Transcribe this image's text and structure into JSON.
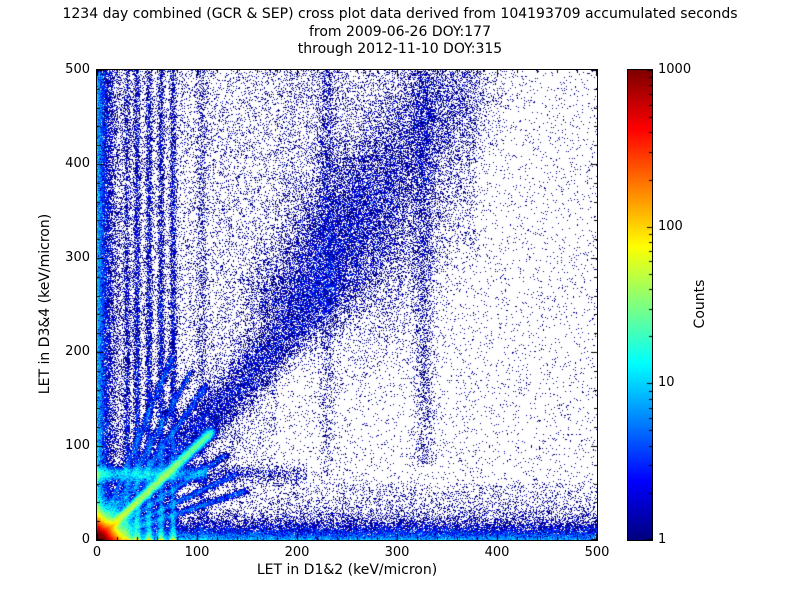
{
  "title": {
    "line1": "1234 day combined (GCR & SEP) cross plot data derived from 104193709 accumulated seconds",
    "line2": "from 2009-06-26 DOY:177",
    "line3": "through 2012-11-10 DOY:315"
  },
  "chart_data": {
    "type": "heatmap",
    "subtype": "2d-histogram-cross-plot",
    "xlabel": "LET in D1&2 (keV/micron)",
    "ylabel": "LET in D3&4 (keV/micron)",
    "xlim": [
      0,
      500
    ],
    "ylim": [
      0,
      500
    ],
    "x_ticks": [
      0,
      100,
      200,
      300,
      400,
      500
    ],
    "y_ticks": [
      0,
      100,
      200,
      300,
      400,
      500
    ],
    "x_minor_step": 20,
    "y_minor_step": 20,
    "grid": false,
    "colorbar": {
      "label": "Counts",
      "scale": "log",
      "ticks": [
        1,
        10,
        100,
        1000
      ],
      "range": [
        1,
        1000
      ],
      "colormap": "jet",
      "color_low": "#00007f",
      "color_high": "#7f0000"
    },
    "features": [
      {
        "kind": "scatter",
        "desc": "sparse full-field background, denser at low x",
        "n": 15000,
        "x0": 0,
        "x1": 500,
        "y0": 0,
        "y1": 500,
        "biasx": 1.5,
        "biasy": 1
      },
      {
        "kind": "scatter",
        "desc": "extra scatter in left region",
        "n": 9000,
        "x0": 0,
        "x1": 180,
        "y0": 0,
        "y1": 500,
        "biasx": 1,
        "biasy": 1
      },
      {
        "kind": "scatter",
        "desc": "low-level scatter bottom-right",
        "n": 3000,
        "x0": 180,
        "x1": 500,
        "y0": 0,
        "y1": 60,
        "biasx": 1,
        "biasy": 1.3
      },
      {
        "kind": "scatter",
        "desc": "enhanced scatter upper middle around diagonal",
        "n": 5000,
        "x0": 180,
        "x1": 380,
        "y0": 300,
        "y1": 500,
        "biasx": 1,
        "biasy": 0.8
      },
      {
        "kind": "blob",
        "dist": "exp",
        "desc": "intense hotspot at origin (~1000 counts)",
        "cx": 0,
        "cy": 0,
        "sx": 7,
        "sy": 7,
        "n": 170000
      },
      {
        "kind": "ray",
        "desc": "bright unity-slope diagonal from origin",
        "slope": 1.0,
        "u0": 0,
        "u1": 115,
        "spread": 2.5,
        "bias": 2,
        "grow": 0,
        "n": 48000
      },
      {
        "kind": "ray",
        "desc": "broad diagonal band lower part",
        "slope": 1.15,
        "u0": 50,
        "u1": 250,
        "spread": 8,
        "bias": 1.4,
        "grow": 0.004,
        "n": 14000
      },
      {
        "kind": "ray",
        "desc": "broad diagonal band upper part",
        "slope": 1.35,
        "u0": 180,
        "u1": 370,
        "spread": 14,
        "bias": 1.2,
        "grow": 0.003,
        "n": 14000
      },
      {
        "kind": "blob",
        "dist": "gauss",
        "desc": "dense cluster on diagonal band",
        "cx": 265,
        "cy": 318,
        "sx": 40,
        "sy": 55,
        "n": 8000
      },
      {
        "kind": "ray",
        "desc": "fan ray",
        "slope": 2.6,
        "u0": 0,
        "u1": 75,
        "spread": 2,
        "bias": 1.6,
        "grow": 0,
        "n": 4500
      },
      {
        "kind": "ray",
        "desc": "fan ray",
        "slope": 1.9,
        "u0": 0,
        "u1": 95,
        "spread": 2,
        "bias": 1.6,
        "grow": 0,
        "n": 4500
      },
      {
        "kind": "ray",
        "desc": "fan ray",
        "slope": 1.5,
        "u0": 0,
        "u1": 110,
        "spread": 2,
        "bias": 1.6,
        "grow": 0,
        "n": 4500
      },
      {
        "kind": "ray",
        "desc": "fan ray",
        "slope": 0.7,
        "u0": 0,
        "u1": 130,
        "spread": 2,
        "bias": 1.6,
        "grow": 0,
        "n": 4500
      },
      {
        "kind": "ray",
        "desc": "fan ray",
        "slope": 0.5,
        "u0": 0,
        "u1": 140,
        "spread": 2,
        "bias": 1.6,
        "grow": 0,
        "n": 4500
      },
      {
        "kind": "ray",
        "desc": "fan ray",
        "slope": 0.35,
        "u0": 0,
        "u1": 150,
        "spread": 2,
        "bias": 1.6,
        "grow": 0,
        "n": 4500
      },
      {
        "kind": "vstreak",
        "desc": "vertical streak",
        "x": 30,
        "spread": 1.8,
        "y0": 0,
        "y1": 500,
        "bias": 2.4,
        "n": 3500
      },
      {
        "kind": "vstreak",
        "desc": "vertical streak",
        "x": 40,
        "spread": 1.8,
        "y0": 0,
        "y1": 500,
        "bias": 2.4,
        "n": 5500
      },
      {
        "kind": "vstreak",
        "desc": "vertical streak",
        "x": 52,
        "spread": 1.8,
        "y0": 0,
        "y1": 500,
        "bias": 2.4,
        "n": 5500
      },
      {
        "kind": "vstreak",
        "desc": "vertical streak",
        "x": 64,
        "spread": 1.8,
        "y0": 0,
        "y1": 500,
        "bias": 2.4,
        "n": 5500
      },
      {
        "kind": "vstreak",
        "desc": "vertical streak",
        "x": 76,
        "spread": 1.8,
        "y0": 0,
        "y1": 500,
        "bias": 2.4,
        "n": 5500
      },
      {
        "kind": "vstreak",
        "desc": "faint tall streak",
        "x": 105,
        "spread": 3,
        "y0": 0,
        "y1": 500,
        "bias": 1.5,
        "n": 1800
      },
      {
        "kind": "vstreak",
        "desc": "faint tall streak upper-biased",
        "x": 230,
        "spread": 5,
        "y0": 60,
        "y1": 500,
        "bias": 0.7,
        "n": 2000
      },
      {
        "kind": "vstreak",
        "desc": "faint tall streak",
        "x": 327,
        "spread": 6,
        "y0": 80,
        "y1": 500,
        "bias": 0.9,
        "n": 2600
      },
      {
        "kind": "hstreak",
        "desc": "horizontal band near y=70",
        "y": 70,
        "spread": 4,
        "x0": 0,
        "x1": 110,
        "bias": 1.4,
        "n": 8000
      },
      {
        "kind": "hstreak",
        "desc": "faint extension of y=70 band",
        "y": 70,
        "spread": 5,
        "x0": 0,
        "x1": 210,
        "bias": 1.2,
        "n": 2000
      },
      {
        "kind": "edge-left",
        "desc": "dense strip along left axis",
        "scale": 6,
        "y0": 0,
        "y1": 500,
        "bias": 1.15,
        "n": 26000
      },
      {
        "kind": "edge-bottom",
        "desc": "dense strip along bottom axis to x=500",
        "scale": 8,
        "x0": 0,
        "x1": 500,
        "bias": 1.15,
        "n": 30000
      }
    ]
  }
}
